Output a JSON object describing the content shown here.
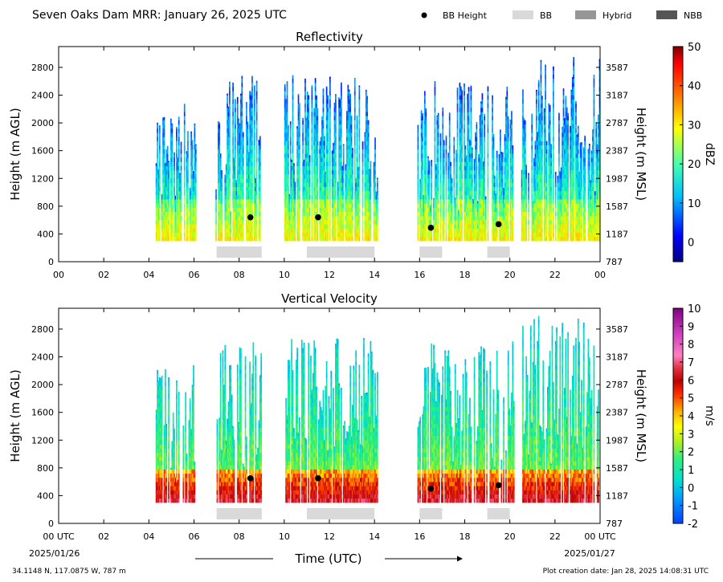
{
  "header": {
    "title": "Seven Oaks Dam MRR:  January 26, 2025 UTC",
    "legend": [
      {
        "label": "BB Height",
        "kind": "dot",
        "color": "#000000"
      },
      {
        "label": "BB",
        "kind": "box",
        "color": "#d9d9d9"
      },
      {
        "label": "Hybrid",
        "kind": "box",
        "color": "#969696"
      },
      {
        "label": "NBB",
        "kind": "box",
        "color": "#555555"
      }
    ]
  },
  "footer": {
    "location": "34.1148 N, 117.0875 W, 787 m",
    "creation": "Plot creation date: Jan 28, 2025 14:08:31 UTC",
    "xlabel": "Time (UTC)",
    "start_label": "00 UTC",
    "start_date": "2025/01/26",
    "end_label": "00 UTC",
    "end_date": "2025/01/27"
  },
  "chart_data": [
    {
      "type": "heatmap",
      "title": "Reflectivity",
      "ylabel": "Height (m AGL)",
      "y2label": "Height (m MSL)",
      "xlim": [
        0,
        24
      ],
      "ylim": [
        0,
        3100
      ],
      "xticks": [
        "00",
        "02",
        "04",
        "06",
        "08",
        "10",
        "12",
        "14",
        "16",
        "18",
        "20",
        "22",
        "00"
      ],
      "yticks": [
        0,
        400,
        800,
        1200,
        1600,
        2000,
        2400,
        2800
      ],
      "y2ticks": [
        "787",
        "1187",
        "1587",
        "1987",
        "2387",
        "2787",
        "3187",
        "3587"
      ],
      "colorbar": {
        "label": "dBZ",
        "min": -5,
        "max": 50,
        "ticks": [
          0,
          10,
          20,
          30,
          40,
          50
        ]
      },
      "echo_periods": [
        {
          "start": 4.3,
          "end": 6.05,
          "top": 2300
        },
        {
          "start": 6.95,
          "end": 9.0,
          "top": 2700
        },
        {
          "start": 10.0,
          "end": 14.15,
          "top": 2700
        },
        {
          "start": 15.9,
          "end": 20.2,
          "top": 2650
        },
        {
          "start": 20.5,
          "end": 24.0,
          "top": 3000
        }
      ],
      "bb_height": [
        {
          "time": 8.5,
          "height": 640
        },
        {
          "time": 11.5,
          "height": 640
        },
        {
          "time": 16.5,
          "height": 490
        },
        {
          "time": 19.5,
          "height": 540
        }
      ],
      "bb_type_periods": [
        {
          "start": 7.0,
          "end": 9.0,
          "type": "BB"
        },
        {
          "start": 11.0,
          "end": 14.0,
          "type": "BB"
        },
        {
          "start": 16.0,
          "end": 17.0,
          "type": "BB"
        },
        {
          "start": 19.0,
          "end": 20.0,
          "type": "BB"
        }
      ]
    },
    {
      "type": "heatmap",
      "title": "Vertical Velocity",
      "ylabel": "Height (m AGL)",
      "y2label": "Height (m MSL)",
      "xlim": [
        0,
        24
      ],
      "ylim": [
        0,
        3100
      ],
      "xticks": [
        "00 UTC",
        "02",
        "04",
        "06",
        "08",
        "10",
        "12",
        "14",
        "16",
        "18",
        "20",
        "22",
        "00 UTC"
      ],
      "yticks": [
        0,
        400,
        800,
        1200,
        1600,
        2000,
        2400,
        2800
      ],
      "y2ticks": [
        "787",
        "1187",
        "1587",
        "1987",
        "2387",
        "2787",
        "3187",
        "3587"
      ],
      "colorbar": {
        "label": "m/s",
        "min": -2,
        "max": 10,
        "ticks": [
          -2,
          -1,
          0,
          1,
          2,
          3,
          4,
          5,
          6,
          7,
          8,
          9,
          10
        ]
      },
      "echo_periods": [
        {
          "start": 4.3,
          "end": 6.05,
          "top": 2300
        },
        {
          "start": 6.95,
          "end": 9.0,
          "top": 2700
        },
        {
          "start": 10.0,
          "end": 14.15,
          "top": 2700
        },
        {
          "start": 15.9,
          "end": 20.2,
          "top": 2650
        },
        {
          "start": 20.5,
          "end": 24.0,
          "top": 3000
        }
      ],
      "bb_height": [
        {
          "time": 8.5,
          "height": 650
        },
        {
          "time": 11.5,
          "height": 650
        },
        {
          "time": 16.5,
          "height": 500
        },
        {
          "time": 19.5,
          "height": 550
        }
      ],
      "bb_type_periods": [
        {
          "start": 7.0,
          "end": 9.0,
          "type": "BB"
        },
        {
          "start": 11.0,
          "end": 14.0,
          "type": "BB"
        },
        {
          "start": 16.0,
          "end": 17.0,
          "type": "BB"
        },
        {
          "start": 19.0,
          "end": 20.0,
          "type": "BB"
        }
      ]
    }
  ]
}
